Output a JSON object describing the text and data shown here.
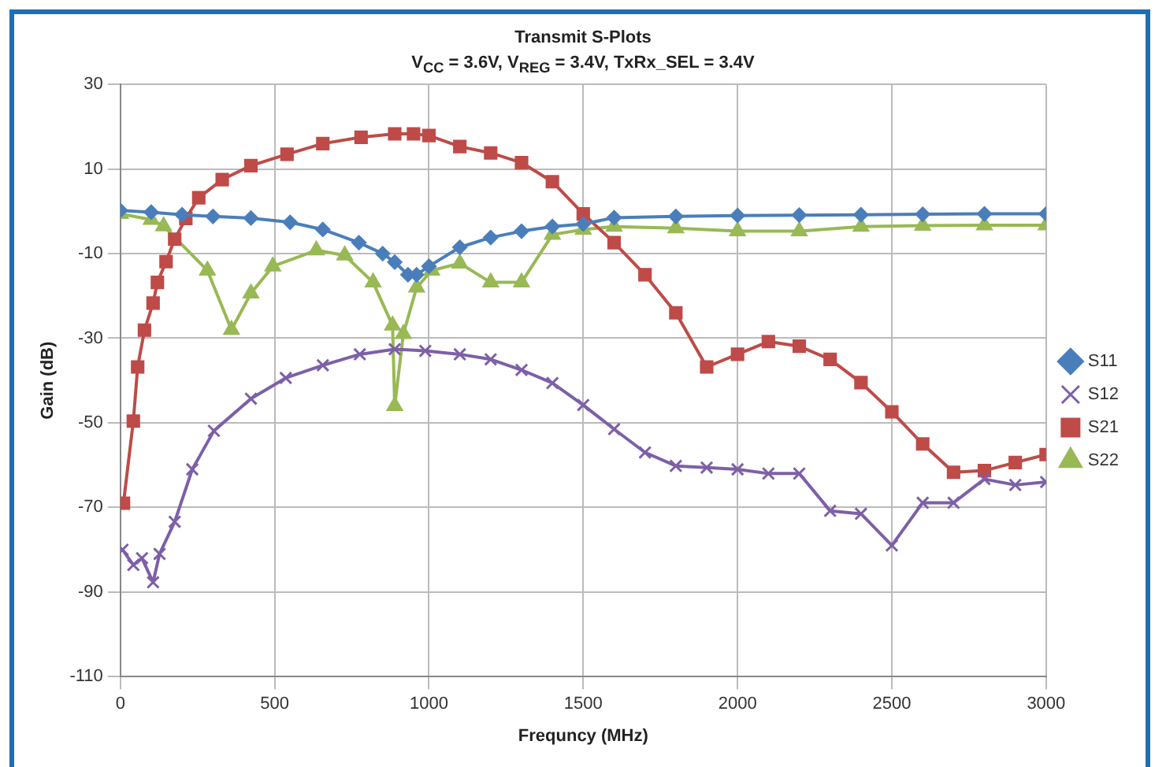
{
  "chart_data": {
    "type": "line",
    "title": "Transmit S-Plots",
    "subtitle": "V$_{CC}$ = 3.6V, V$_{REG}$ = 3.4V, TxRx_SEL = 3.4V",
    "xlabel": "Frequncy (MHz)",
    "ylabel": "Gain (dB)",
    "xlim": [
      0,
      3000
    ],
    "xticks": [
      0,
      500,
      1000,
      1500,
      2000,
      2500,
      3000
    ],
    "ylim": [
      -110,
      30
    ],
    "yticks": [
      -110,
      -90,
      -70,
      -50,
      -30,
      -10,
      10,
      30
    ],
    "grid": true,
    "legend": "right",
    "series": [
      {
        "name": "S11",
        "color": "#4a7ebb",
        "marker": "diamond",
        "x": [
          0,
          100,
          200,
          300,
          423,
          550,
          656,
          773,
          850,
          889,
          932,
          960,
          1000,
          1100,
          1200,
          1300,
          1400,
          1500,
          1600,
          1800,
          2000,
          2200,
          2400,
          2600,
          2800,
          3000
        ],
        "values": [
          0.2,
          -0.2,
          -0.8,
          -1.2,
          -1.6,
          -2.6,
          -4.3,
          -7.4,
          -10,
          -12,
          -15,
          -15,
          -13,
          -8.5,
          -6.2,
          -4.7,
          -3.6,
          -3,
          -1.5,
          -1.2,
          -1,
          -0.9,
          -0.8,
          -0.7,
          -0.6,
          -0.6
        ]
      },
      {
        "name": "S12",
        "color": "#7d5fa8",
        "marker": "cross",
        "x": [
          7,
          42,
          70,
          106,
          127,
          176,
          233,
          303,
          423,
          536,
          656,
          776,
          889,
          988,
          1100,
          1200,
          1300,
          1400,
          1500,
          1600,
          1700,
          1800,
          1900,
          2000,
          2100,
          2200,
          2300,
          2400,
          2500,
          2600,
          2700,
          2800,
          2900,
          3000
        ],
        "values": [
          -80,
          -83.6,
          -82,
          -87.7,
          -81,
          -73.4,
          -61,
          -51.9,
          -44.3,
          -39.4,
          -36.4,
          -33.8,
          -32.6,
          -33,
          -33.8,
          -35,
          -37.5,
          -40.6,
          -45.8,
          -51.5,
          -57,
          -60.2,
          -60.6,
          -61,
          -62,
          -62,
          -70.8,
          -71.5,
          -79,
          -68.9,
          -68.9,
          -63.3,
          -64.7,
          -64
        ]
      },
      {
        "name": "S21",
        "color": "#be4b48",
        "marker": "square",
        "x": [
          10,
          42,
          56,
          78,
          106,
          120,
          148,
          176,
          212,
          254,
          330,
          423,
          540,
          656,
          780,
          889,
          950,
          1000,
          1100,
          1200,
          1300,
          1400,
          1500,
          1600,
          1700,
          1800,
          1900,
          2000,
          2100,
          2200,
          2300,
          2400,
          2500,
          2600,
          2700,
          2800,
          2900,
          3000
        ],
        "values": [
          -69,
          -49.6,
          -36.8,
          -28.1,
          -21.7,
          -16.8,
          -11.9,
          -6.6,
          -1.7,
          3.2,
          7.5,
          10.8,
          13.5,
          16,
          17.5,
          18.3,
          18.3,
          17.9,
          15.3,
          13.8,
          11.5,
          7,
          -0.6,
          -7.4,
          -15,
          -24,
          -36.8,
          -33.8,
          -30.8,
          -31.9,
          -35,
          -40.5,
          -47.4,
          -55,
          -61.7,
          -61.3,
          -59.4,
          -57.5
        ]
      },
      {
        "name": "S22",
        "color": "#98b954",
        "marker": "triangle",
        "x": [
          0,
          100,
          140,
          282,
          360,
          423,
          494,
          635,
          727,
          819,
          882,
          889,
          917,
          960,
          1009,
          1100,
          1200,
          1300,
          1400,
          1500,
          1600,
          1800,
          2000,
          2200,
          2400,
          2600,
          2800,
          3000
        ],
        "values": [
          -0.6,
          -2,
          -3.5,
          -14,
          -28,
          -19.4,
          -13,
          -9.2,
          -10.4,
          -16.8,
          -27,
          -46,
          -29,
          -18,
          -14,
          -12.3,
          -16.8,
          -16.8,
          -5.5,
          -4.3,
          -3.6,
          -4,
          -4.7,
          -4.7,
          -3.6,
          -3.4,
          -3.3,
          -3.3
        ]
      }
    ]
  }
}
